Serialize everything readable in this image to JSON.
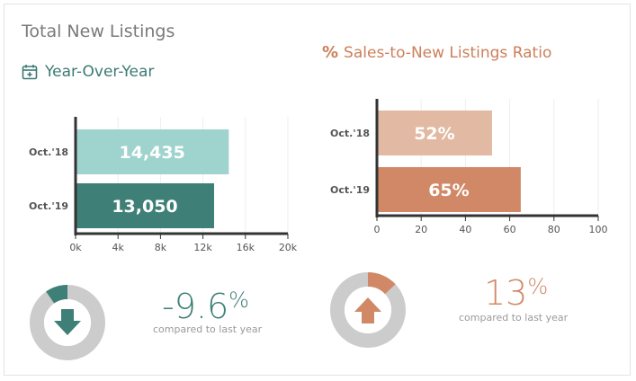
{
  "header": {
    "title": "Total New Listings",
    "yoy_label": "Year-Over-Year",
    "ratio_title": "Sales-to-New Listings Ratio",
    "ratio_icon": "%"
  },
  "chart_data": [
    {
      "type": "bar",
      "orientation": "horizontal",
      "categories": [
        "Oct.'18",
        "Oct.'19"
      ],
      "values": [
        14435,
        13050
      ],
      "value_labels": [
        "14,435",
        "13,050"
      ],
      "xlim": [
        0,
        20000
      ],
      "xticks": [
        0,
        4000,
        8000,
        12000,
        16000,
        20000
      ],
      "xtick_labels": [
        "0k",
        "4k",
        "8k",
        "12k",
        "16k",
        "20k"
      ],
      "colors": [
        "#9fd3cd",
        "#3e8077"
      ],
      "grid": true
    },
    {
      "type": "bar",
      "orientation": "horizontal",
      "categories": [
        "Oct.'18",
        "Oct.'19"
      ],
      "values": [
        52,
        65
      ],
      "value_labels": [
        "52%",
        "65%"
      ],
      "xlim": [
        0,
        100
      ],
      "xticks": [
        0,
        20,
        40,
        60,
        80,
        100
      ],
      "xtick_labels": [
        "0",
        "20",
        "40",
        "60",
        "80",
        "100"
      ],
      "colors": [
        "#e2b9a2",
        "#d08866"
      ],
      "grid": true
    }
  ],
  "listings_change": {
    "value": "-9.6",
    "unit": "%",
    "caption": "compared to last year",
    "ring_fraction": 0.096,
    "direction": "down",
    "color": "#3e8077"
  },
  "ratio_change": {
    "value": "13",
    "unit": "%",
    "caption": "compared to last year",
    "ring_fraction": 0.13,
    "direction": "up",
    "color": "#d08866"
  }
}
